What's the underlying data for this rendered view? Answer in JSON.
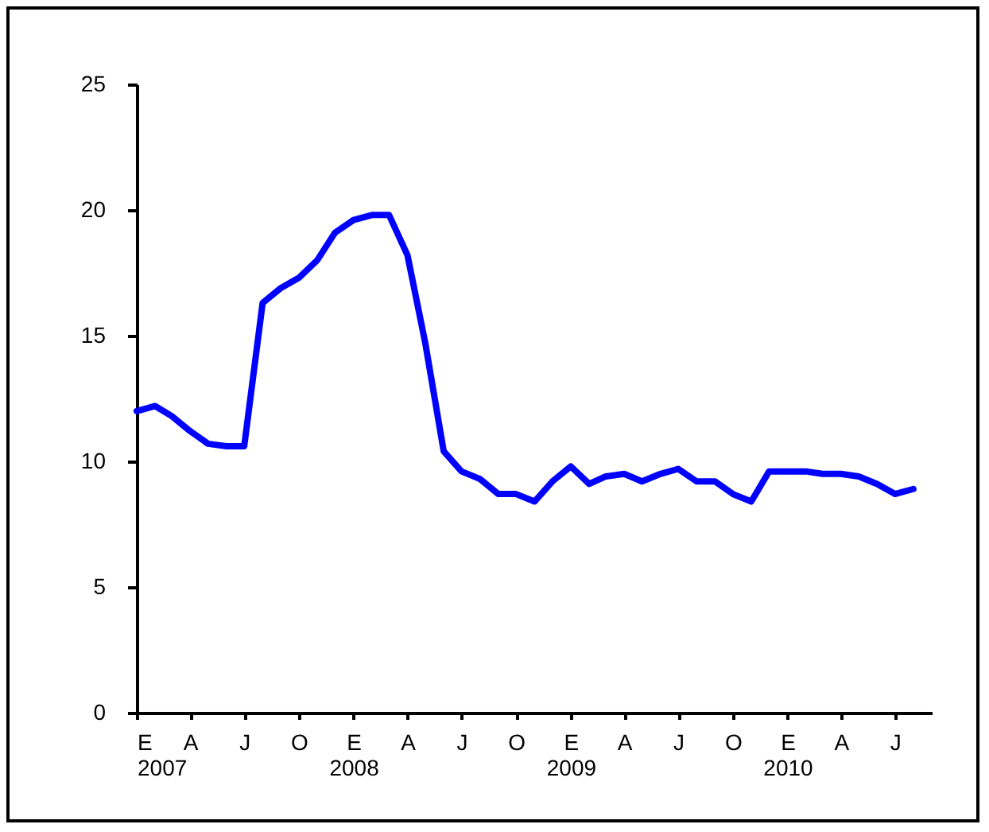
{
  "chart_data": {
    "type": "line",
    "grid": false,
    "marker": "none",
    "line_style": "solid",
    "x": [
      "2007-01",
      "2007-02",
      "2007-03",
      "2007-04",
      "2007-05",
      "2007-06",
      "2007-07",
      "2007-08",
      "2007-09",
      "2007-10",
      "2007-11",
      "2007-12",
      "2008-01",
      "2008-02",
      "2008-03",
      "2008-04",
      "2008-05",
      "2008-06",
      "2008-07",
      "2008-08",
      "2008-09",
      "2008-10",
      "2008-11",
      "2008-12",
      "2009-01",
      "2009-02",
      "2009-03",
      "2009-04",
      "2009-05",
      "2009-06",
      "2009-07",
      "2009-08",
      "2009-09",
      "2009-10",
      "2009-11",
      "2009-12",
      "2010-01",
      "2010-02",
      "2010-03",
      "2010-04",
      "2010-05",
      "2010-06",
      "2010-07",
      "2010-08"
    ],
    "series": [
      {
        "color": "#0000ff",
        "values": [
          12.0,
          12.2,
          11.8,
          11.2,
          10.7,
          10.6,
          10.6,
          16.3,
          16.9,
          17.3,
          18.0,
          19.1,
          19.6,
          19.8,
          19.8,
          18.2,
          14.7,
          10.4,
          9.6,
          9.3,
          8.7,
          8.7,
          8.4,
          9.2,
          9.8,
          9.1,
          9.4,
          9.5,
          9.2,
          9.5,
          9.7,
          9.2,
          9.2,
          8.7,
          8.4,
          9.6,
          9.6,
          9.6,
          9.5,
          9.5,
          9.4,
          9.1,
          8.7,
          8.9
        ]
      }
    ],
    "xlim": [
      "2007-01",
      "2010-09"
    ],
    "xticks": [
      {
        "value": "2007-01",
        "label": "E\n2007"
      },
      {
        "value": "2007-04",
        "label": "A"
      },
      {
        "value": "2007-07",
        "label": "J"
      },
      {
        "value": "2007-10",
        "label": "O"
      },
      {
        "value": "2008-01",
        "label": "E\n2008"
      },
      {
        "value": "2008-04",
        "label": "A"
      },
      {
        "value": "2008-07",
        "label": "J"
      },
      {
        "value": "2008-10",
        "label": "O"
      },
      {
        "value": "2009-01",
        "label": "E\n2009"
      },
      {
        "value": "2009-04",
        "label": "A"
      },
      {
        "value": "2009-07",
        "label": "J"
      },
      {
        "value": "2009-10",
        "label": "O"
      },
      {
        "value": "2010-01",
        "label": "E\n2010"
      },
      {
        "value": "2010-04",
        "label": "A"
      },
      {
        "value": "2010-07",
        "label": "J"
      }
    ],
    "ylim": [
      0,
      25
    ],
    "yticks": [
      0,
      5,
      10,
      15,
      20,
      25
    ]
  }
}
